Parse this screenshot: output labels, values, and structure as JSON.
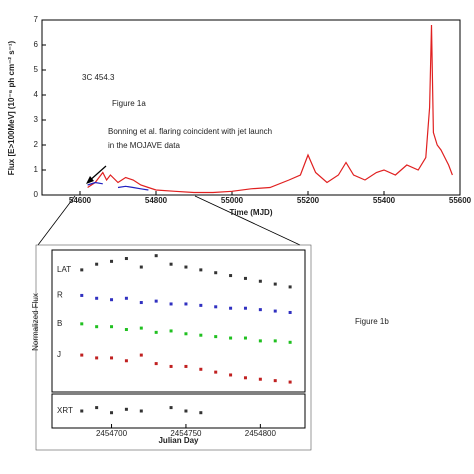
{
  "chart_data": [
    {
      "type": "line",
      "x_label": "Time (MJD)",
      "y_label": "Flux [E>100MeV] (10⁻⁶ ph cm⁻² s⁻¹)",
      "annotations": [
        "3C 454.3",
        "Figure 1a",
        "Bonning et al. flaring coincident with jet launch",
        "in the MOJAVE data"
      ],
      "xlim": [
        54500,
        55600
      ],
      "xticks": [
        54600,
        54800,
        55000,
        55200,
        55400,
        55600
      ],
      "ylim": [
        0,
        7
      ],
      "yticks": [
        0,
        1,
        2,
        3,
        4,
        5,
        6,
        7
      ],
      "x": [
        54620,
        54640,
        54660,
        54670,
        54680,
        54700,
        54720,
        54740,
        54760,
        54780,
        54800,
        54850,
        54900,
        54950,
        55000,
        55050,
        55100,
        55150,
        55180,
        55200,
        55220,
        55250,
        55280,
        55300,
        55320,
        55350,
        55380,
        55400,
        55430,
        55460,
        55490,
        55510,
        55520,
        55525,
        55530,
        55540,
        55550,
        55560,
        55570,
        55580
      ],
      "series": [
        {
          "color": "#e02020",
          "values": [
            0.3,
            0.5,
            0.9,
            0.6,
            0.8,
            0.5,
            0.7,
            0.6,
            0.4,
            0.3,
            0.2,
            0.15,
            0.1,
            0.1,
            0.15,
            0.25,
            0.3,
            0.6,
            0.8,
            1.6,
            0.9,
            0.5,
            0.8,
            1.3,
            0.8,
            0.6,
            0.9,
            1.0,
            0.8,
            1.2,
            1.0,
            1.5,
            3.5,
            6.8,
            2.5,
            2.0,
            1.8,
            1.5,
            1.2,
            0.8
          ]
        },
        {
          "color": "#2020c0",
          "values": [
            0.4,
            0.5,
            0.45,
            null,
            null,
            0.3,
            0.35,
            0.3,
            0.25,
            0.2,
            null,
            null,
            null,
            null,
            null,
            null,
            null,
            null,
            null,
            null,
            null,
            null,
            null,
            null,
            null,
            null,
            null,
            null,
            null,
            null,
            null,
            null,
            null,
            null,
            null,
            null,
            null,
            null,
            null,
            null
          ]
        }
      ]
    },
    {
      "type": "scatter",
      "y_label": "Normalized Flux",
      "annotations": [
        "Figure 1b"
      ],
      "xlim": [
        2454660,
        2454830
      ],
      "ylim": [
        0,
        10
      ],
      "x": [
        2454680,
        2454690,
        2454700,
        2454710,
        2454720,
        2454730,
        2454740,
        2454750,
        2454760,
        2454770,
        2454780,
        2454790,
        2454800,
        2454810,
        2454820
      ],
      "series": [
        {
          "name": "LAT",
          "color": "#333333",
          "values": [
            8.6,
            9.0,
            9.2,
            9.4,
            8.8,
            9.6,
            9.0,
            8.8,
            8.6,
            8.4,
            8.2,
            8.0,
            7.8,
            7.6,
            7.4
          ]
        },
        {
          "name": "R",
          "color": "#3030c0",
          "values": [
            6.8,
            6.6,
            6.5,
            6.6,
            6.3,
            6.4,
            6.2,
            6.2,
            6.1,
            6.0,
            5.9,
            5.9,
            5.8,
            5.7,
            5.6
          ]
        },
        {
          "name": "B",
          "color": "#20c020",
          "values": [
            4.8,
            4.6,
            4.6,
            4.4,
            4.5,
            4.2,
            4.3,
            4.1,
            4.0,
            3.9,
            3.8,
            3.8,
            3.6,
            3.6,
            3.5
          ]
        },
        {
          "name": "J",
          "color": "#c02020",
          "values": [
            2.6,
            2.4,
            2.4,
            2.2,
            2.6,
            2.0,
            1.8,
            1.8,
            1.6,
            1.4,
            1.2,
            1.0,
            0.9,
            0.8,
            0.7
          ]
        }
      ]
    },
    {
      "type": "scatter",
      "x_label": "Julian Day",
      "xlim": [
        2454660,
        2454830
      ],
      "xticks": [
        2454700,
        2454750,
        2454800
      ],
      "ylim": [
        0,
        2
      ],
      "x": [
        2454680,
        2454690,
        2454700,
        2454710,
        2454720,
        2454740,
        2454750,
        2454760
      ],
      "series": [
        {
          "name": "XRT",
          "color": "#333333",
          "values": [
            1.0,
            1.2,
            0.9,
            1.1,
            1.0,
            1.2,
            1.0,
            0.9
          ]
        }
      ]
    }
  ]
}
